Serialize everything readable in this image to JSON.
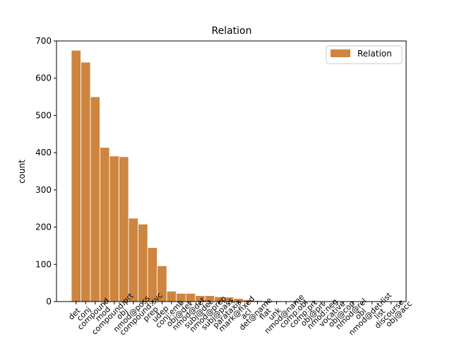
{
  "chart_data": {
    "type": "bar",
    "title": "Relation",
    "y_label": "count",
    "categories": [
      "det",
      "conj",
      "compound",
      "mod",
      "compound:prt",
      "obj",
      "nmod@poss",
      "compound:svc",
      "prep",
      "udep",
      "conj:emb",
      "obj@det",
      "nmod@det",
      "subj@det",
      "nmod@prep",
      "subj@pass",
      "parataxis",
      "mark@fixed",
      "acl",
      "det@name",
      "flat",
      "unk",
      "nmod@name",
      "comp:obl",
      "comp:prt",
      "obj@prt",
      "nmod:neg",
      "vocative",
      "obj@cop",
      "nmod@rel",
      "obl",
      "nmod@det:list",
      "list",
      "discourse",
      "obj@acc"
    ],
    "series": [
      {
        "name": "Relation",
        "color": "#cd853f",
        "values": [
          675,
          643,
          550,
          414,
          391,
          389,
          224,
          208,
          145,
          96,
          28,
          22,
          22,
          16,
          16,
          13,
          12,
          8,
          5,
          3,
          2,
          2,
          1,
          1,
          1,
          1,
          1,
          1,
          1,
          1,
          1,
          1,
          1,
          1,
          1
        ]
      }
    ],
    "ylim": [
      0,
      700
    ],
    "yticks": [
      0,
      100,
      200,
      300,
      400,
      500,
      600,
      700
    ],
    "legend": "upper right"
  }
}
